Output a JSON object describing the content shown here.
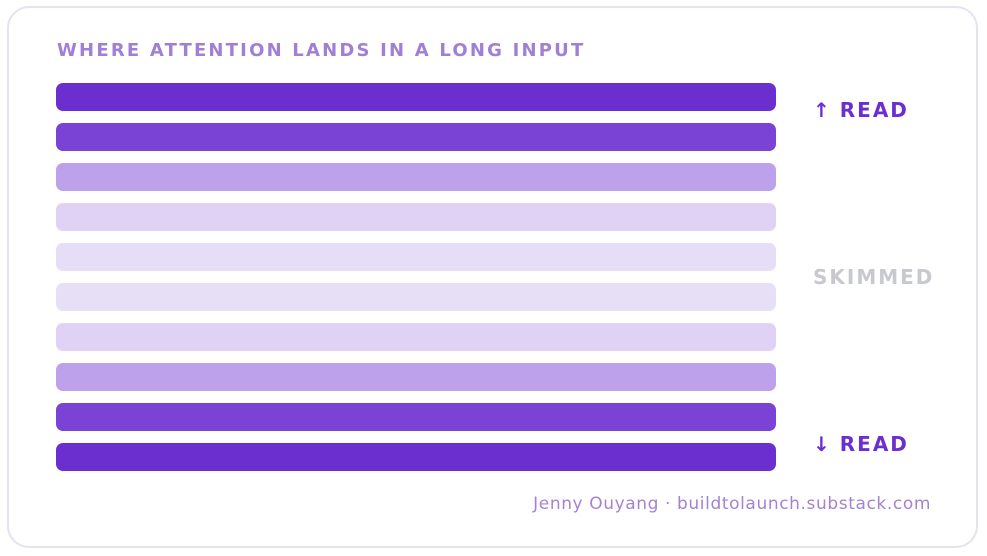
{
  "title": "WHERE ATTENTION LANDS IN A LONG INPUT",
  "bars": [
    {
      "shade": "#6b2fd0"
    },
    {
      "shade": "#7a43d6"
    },
    {
      "shade": "#bda1ea"
    },
    {
      "shade": "#e0d2f4"
    },
    {
      "shade": "#e6ddf6"
    },
    {
      "shade": "#e7dff6"
    },
    {
      "shade": "#e0d2f4"
    },
    {
      "shade": "#bda1ea"
    },
    {
      "shade": "#7a43d6"
    },
    {
      "shade": "#6b2fd0"
    }
  ],
  "labels": {
    "top": {
      "arrow": "↑",
      "text": "READ",
      "color": "#6b2fd0"
    },
    "middle": {
      "text": "SKIMMED",
      "color": "#c7c9ce"
    },
    "bottom": {
      "arrow": "↓",
      "text": "READ",
      "color": "#6b2fd0"
    }
  },
  "credit": "Jenny Ouyang · buildtolaunch.substack.com"
}
